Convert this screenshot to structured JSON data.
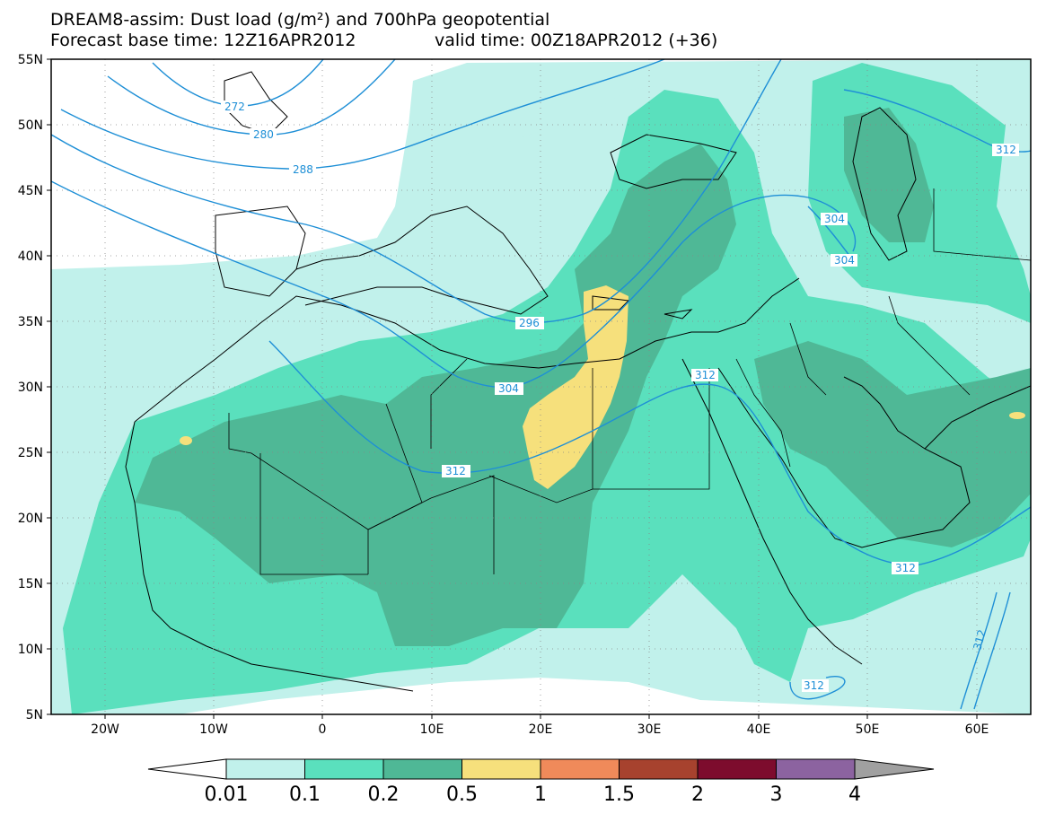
{
  "title": {
    "line1": "DREAM8-assim: Dust load (g/m²) and 700hPa geopotential",
    "line2": "Forecast base time: 12Z16APR2012",
    "line2b": "valid time: 00Z18APR2012 (+36)"
  },
  "map": {
    "region": "North Africa, Middle East and Europe",
    "lat_labels": [
      "55N",
      "50N",
      "45N",
      "40N",
      "35N",
      "30N",
      "25N",
      "20N",
      "15N",
      "10N",
      "5N"
    ],
    "lon_labels": [
      "20W",
      "10W",
      "0",
      "10E",
      "20E",
      "30E",
      "40E",
      "50E",
      "60E"
    ],
    "contour_color": "#1e8fd6",
    "contour_labels": [
      "272",
      "280",
      "288",
      "296",
      "304",
      "312",
      "304",
      "304",
      "312",
      "312",
      "312",
      "312",
      "312"
    ]
  },
  "legend": {
    "tick_labels": [
      "0.01",
      "0.1",
      "0.2",
      "0.5",
      "1",
      "1.5",
      "2",
      "3",
      "4"
    ],
    "colors": [
      "#c1f1eb",
      "#5ae0bd",
      "#4fb896",
      "#f6e07c",
      "#f08a5a",
      "#a7422e",
      "#7d0c2d",
      "#8c63a0",
      "#a0a0a0"
    ]
  }
}
